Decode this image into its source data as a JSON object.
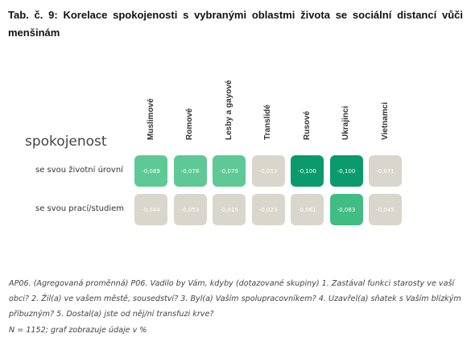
{
  "title": "Tab. č. 9: Korelace spokojenosti s vybranými oblastmi života se sociální distancí vůči menšinám",
  "chart_data": {
    "type": "heatmap",
    "legend_title": "spokojenost",
    "columns": [
      "Muslimové",
      "Romové",
      "Lesby a gayové",
      "Translidé",
      "Rusové",
      "Ukrajinci",
      "Vietnamci"
    ],
    "rows": [
      {
        "label": "se svou životní úrovní",
        "values": [
          -0.089,
          -0.078,
          -0.079,
          -0.053,
          -0.1,
          -0.1,
          -0.071
        ],
        "labels": [
          "-0,089",
          "-0,078",
          "-0,079",
          "-0,053",
          "-0,100",
          "-0,100",
          "-0,071"
        ],
        "colors": [
          "#5ec994",
          "#5ec994",
          "#5ec994",
          "#d9d6cb",
          "#0b9a6c",
          "#0b9a6c",
          "#d9d6cb"
        ]
      },
      {
        "label": "se svou prací/studiem",
        "values": [
          -0.044,
          -0.053,
          -0.015,
          -0.023,
          -0.061,
          -0.083,
          -0.045
        ],
        "labels": [
          "-0,044",
          "-0,053",
          "-0,015",
          "-0,023",
          "-0,061",
          "-0,083",
          "-0,045"
        ],
        "colors": [
          "#d9d6cb",
          "#d9d6cb",
          "#d9d6cb",
          "#d9d6cb",
          "#d9d6cb",
          "#41bd84",
          "#d9d6cb"
        ]
      }
    ]
  },
  "notes": {
    "question": "AP06. (Agregovaná proměnná) P06. Vadilo by Vám, kdyby (dotazované skupiny) 1. Zastával funkci starosty ve vaší obci? 2. Žil(a) ve vašem městě, sousedství? 3. Byl(a) Vaším spolupracovníkem? 4. Uzavřel(a) sňatek s Vaším blízkým příbuzným? 5. Dostal(a) jste od něj/ní transfuzi krve?",
    "sample": "N = 1152; graf zobrazuje údaje v %"
  }
}
